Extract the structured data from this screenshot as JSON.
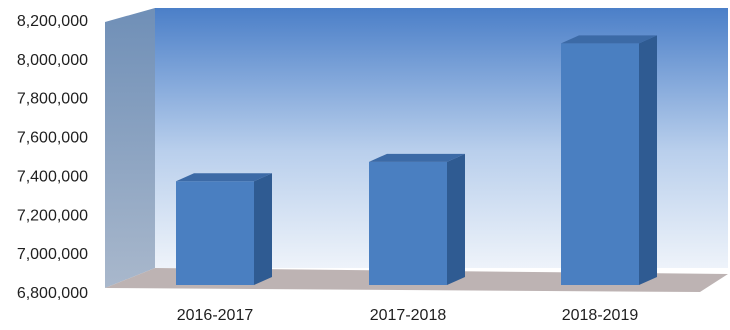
{
  "chart_data": {
    "type": "bar",
    "categories": [
      "2016-2017",
      "2017-2018",
      "2018-2019"
    ],
    "values": [
      7370000,
      7470000,
      8080000
    ],
    "yticks": [
      "6,800,000",
      "7,000,000",
      "7,200,000",
      "7,400,000",
      "7,600,000",
      "7,800,000",
      "8,000,000",
      "8,200,000"
    ],
    "ylim": [
      6800000,
      8200000
    ],
    "grid": false,
    "legend": "none",
    "bar_color": "#4a7fc1",
    "bar_side_color": "#2f5b92",
    "bar_top_color": "#3c6aa6",
    "wall_color_top": "#4b7fc8",
    "wall_color_bottom": "#e9eff8",
    "floor_color": "#bdb3b3"
  }
}
